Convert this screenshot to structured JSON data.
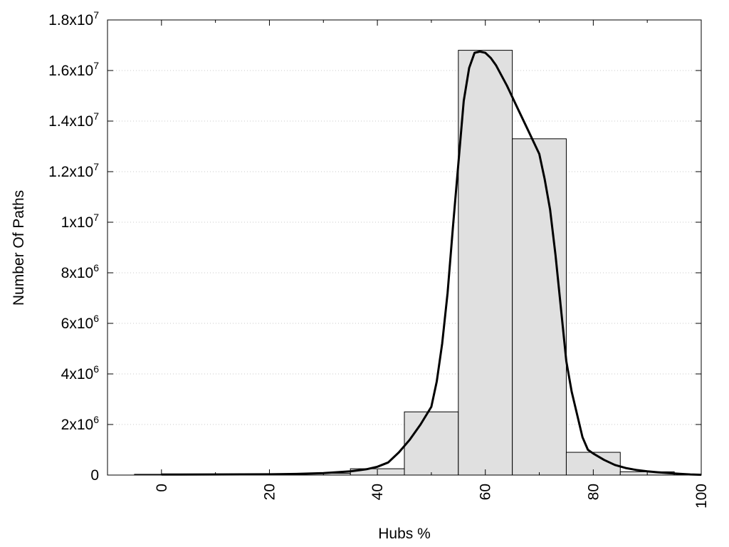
{
  "chart_data": {
    "type": "bar",
    "xlabel": "Hubs %",
    "ylabel": "Number Of Paths",
    "xlim": [
      -10,
      100
    ],
    "ylim": [
      0,
      18000000
    ],
    "x_ticks": [
      0,
      20,
      40,
      60,
      80,
      100
    ],
    "y_ticks": [
      {
        "value": 0,
        "mant": "0",
        "exp": ""
      },
      {
        "value": 2000000,
        "mant": "2x10",
        "exp": "6"
      },
      {
        "value": 4000000,
        "mant": "4x10",
        "exp": "6"
      },
      {
        "value": 6000000,
        "mant": "6x10",
        "exp": "6"
      },
      {
        "value": 8000000,
        "mant": "8x10",
        "exp": "6"
      },
      {
        "value": 10000000,
        "mant": "1x10",
        "exp": "7"
      },
      {
        "value": 12000000,
        "mant": "1.2x10",
        "exp": "7"
      },
      {
        "value": 14000000,
        "mant": "1.4x10",
        "exp": "7"
      },
      {
        "value": 16000000,
        "mant": "1.6x10",
        "exp": "7"
      },
      {
        "value": 18000000,
        "mant": "1.8x10",
        "exp": "7"
      }
    ],
    "grid": true,
    "bar_width": 10,
    "bar_color": "#e0e0e0",
    "bars": [
      {
        "x": 0,
        "value": 30000
      },
      {
        "x": 10,
        "value": 30000
      },
      {
        "x": 20,
        "value": 40000
      },
      {
        "x": 30,
        "value": 70000
      },
      {
        "x": 40,
        "value": 250000
      },
      {
        "x": 50,
        "value": 2500000
      },
      {
        "x": 60,
        "value": 16800000
      },
      {
        "x": 70,
        "value": 13300000
      },
      {
        "x": 80,
        "value": 900000
      },
      {
        "x": 90,
        "value": 130000
      }
    ],
    "curve": {
      "x": [
        0,
        10,
        20,
        25,
        30,
        35,
        38,
        40,
        42,
        44,
        46,
        48,
        50,
        51,
        52,
        53,
        54,
        55,
        56,
        57,
        58,
        59,
        60,
        61,
        62,
        64,
        66,
        68,
        70,
        71,
        72,
        73,
        74,
        75,
        76,
        77,
        78,
        79,
        80,
        82,
        84,
        86,
        88,
        90,
        92,
        94,
        96,
        98,
        100
      ],
      "y": [
        20000,
        25000,
        30000,
        45000,
        80000,
        150000,
        230000,
        330000,
        500000,
        900000,
        1400000,
        2000000,
        2700000,
        3700000,
        5200000,
        7200000,
        9800000,
        12300000,
        14800000,
        16100000,
        16700000,
        16750000,
        16700000,
        16500000,
        16200000,
        15400000,
        14500000,
        13600000,
        12700000,
        11700000,
        10500000,
        8700000,
        6600000,
        4500000,
        3300000,
        2400000,
        1500000,
        1000000,
        850000,
        600000,
        400000,
        280000,
        200000,
        150000,
        110000,
        80000,
        50000,
        25000,
        10000
      ]
    }
  }
}
